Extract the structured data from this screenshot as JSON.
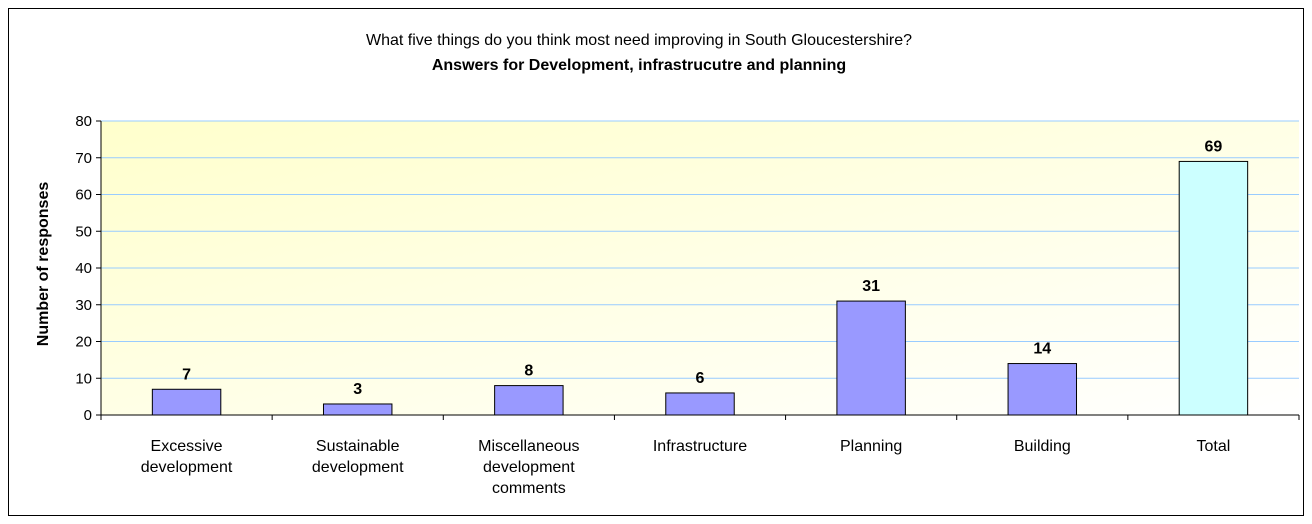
{
  "chart_data": {
    "type": "bar",
    "title": "What five things do you think most need improving in South Gloucestershire?",
    "subtitle": "Answers for Development, infrastrucutre and planning",
    "ylabel": "Number of responses",
    "xlabel": "",
    "ylim": [
      0,
      80
    ],
    "ytick_step": 10,
    "grid": true,
    "legend": "none",
    "categories": [
      [
        "Excessive",
        "development"
      ],
      [
        "Sustainable",
        "development"
      ],
      [
        "Miscellaneous",
        "development",
        "comments"
      ],
      [
        "Infrastructure"
      ],
      [
        "Planning"
      ],
      [
        "Building"
      ],
      [
        "Total"
      ]
    ],
    "values": [
      7,
      3,
      8,
      6,
      31,
      14,
      69
    ],
    "data_labels": [
      "7",
      "3",
      "8",
      "6",
      "31",
      "14",
      "69"
    ],
    "colors": {
      "bar": "#9999ff",
      "total_bar": "#ccffff",
      "gridline": "#99ccff",
      "plot_bg_start": "#ffffcc",
      "plot_bg_end": "#ffffff"
    }
  }
}
